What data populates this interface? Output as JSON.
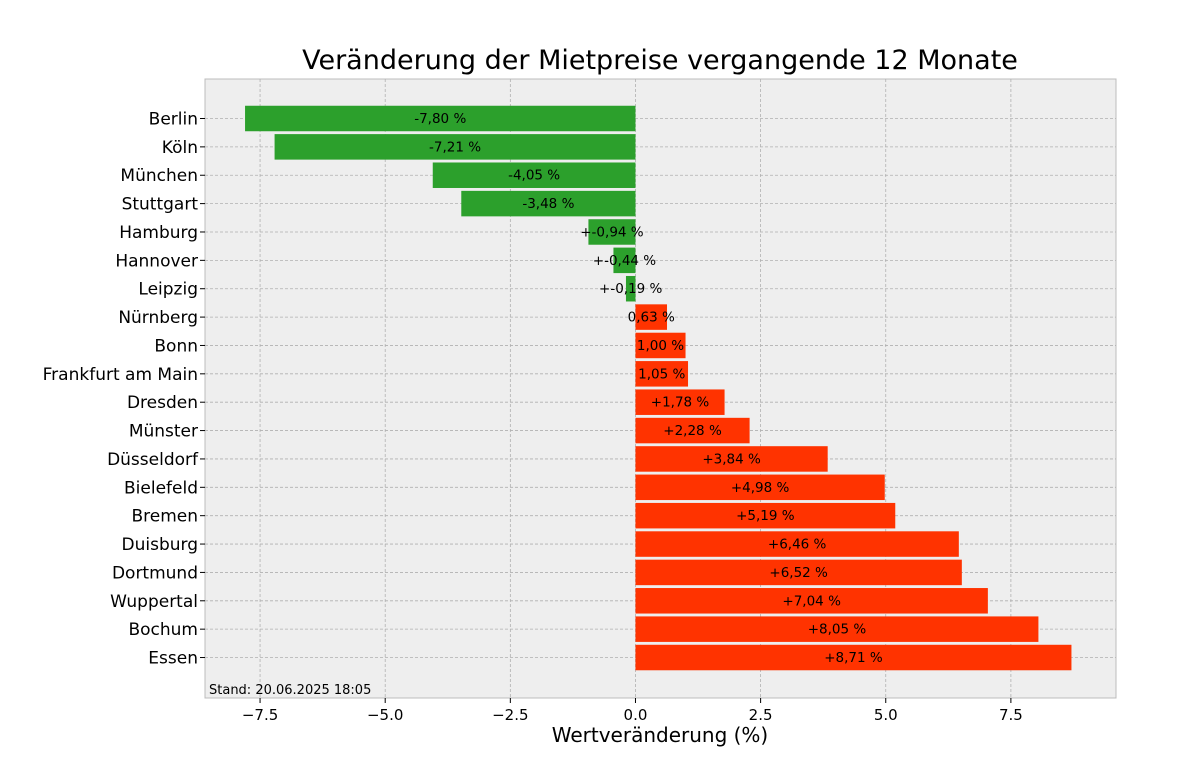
{
  "chart_data": {
    "type": "bar",
    "orientation": "horizontal",
    "title": "Veränderung der Mietpreise vergangende 12 Monate",
    "xlabel": "Wertveränderung (%)",
    "ylabel": "",
    "xlim": [
      -8.6,
      9.6
    ],
    "xticks": [
      -7.5,
      -5.0,
      -2.5,
      0.0,
      2.5,
      5.0,
      7.5
    ],
    "xtick_labels": [
      "−7.5",
      "−5.0",
      "−2.5",
      "0.0",
      "2.5",
      "5.0",
      "7.5"
    ],
    "grid": true,
    "categories": [
      "Berlin",
      "Köln",
      "München",
      "Stuttgart",
      "Hamburg",
      "Hannover",
      "Leipzig",
      "Nürnberg",
      "Bonn",
      "Frankfurt am Main",
      "Dresden",
      "Münster",
      "Düsseldorf",
      "Bielefeld",
      "Bremen",
      "Duisburg",
      "Dortmund",
      "Wuppertal",
      "Bochum",
      "Essen"
    ],
    "values": [
      -7.8,
      -7.21,
      -4.05,
      -3.48,
      -0.94,
      -0.44,
      -0.19,
      0.63,
      1.0,
      1.05,
      1.78,
      2.28,
      3.84,
      4.98,
      5.19,
      6.46,
      6.52,
      7.04,
      8.05,
      8.71
    ],
    "data_labels": [
      "-7,80 %",
      "-7,21 %",
      "-4,05 %",
      "-3,48 %",
      "+-0,94 %",
      "+-0,44 %",
      "+-0,19 %",
      "0,63 %",
      "1,00 %",
      "1,05 %",
      "+1,78 %",
      "+2,28 %",
      "+3,84 %",
      "+4,98 %",
      "+5,19 %",
      "+6,46 %",
      "+6,52 %",
      "+7,04 %",
      "+8,05 %",
      "+8,71 %"
    ],
    "colors": {
      "negative": "#2ca02c",
      "positive": "#ff3300",
      "plot_background": "#eeeeee",
      "grid": "#b0b0b0"
    },
    "footnote": "Stand: 20.06.2025 18:05"
  }
}
